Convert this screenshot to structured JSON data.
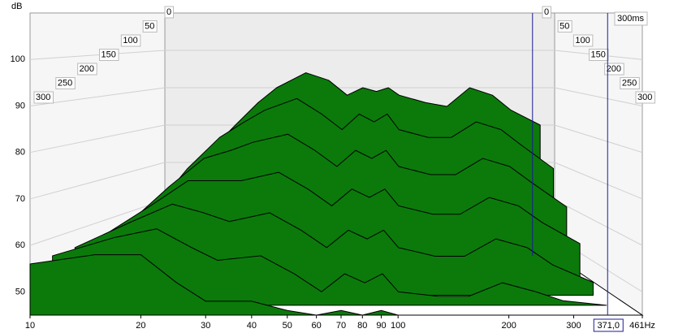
{
  "chart_data": {
    "type": "waterfall",
    "y_label": "dB",
    "time_label": "300ms",
    "color": "#0b7a0b",
    "x": [
      10,
      15,
      20,
      25,
      30,
      40,
      50,
      60,
      70,
      80,
      90,
      100,
      130,
      160,
      200,
      250,
      300,
      400
    ],
    "series": [
      {
        "time": 0,
        "values": [
          57,
          72,
          80,
          86,
          90,
          94,
          92,
          88,
          90,
          89,
          90,
          88,
          86,
          85,
          90,
          88,
          84,
          80
        ]
      },
      {
        "time": 50,
        "values": [
          56,
          70,
          78,
          82,
          85,
          88,
          84,
          80,
          84,
          82,
          84,
          80,
          78,
          78,
          82,
          80,
          76,
          70
        ]
      },
      {
        "time": 100,
        "values": [
          56,
          67,
          74,
          76,
          78,
          80,
          76,
          72,
          76,
          74,
          76,
          72,
          70,
          70,
          74,
          72,
          68,
          62
        ]
      },
      {
        "time": 150,
        "values": [
          56,
          64,
          70,
          70,
          70,
          72,
          68,
          64,
          68,
          66,
          68,
          64,
          62,
          62,
          66,
          64,
          60,
          55
        ]
      },
      {
        "time": 200,
        "values": [
          56,
          62,
          66,
          64,
          62,
          64,
          60,
          56,
          60,
          58,
          60,
          56,
          54,
          54,
          58,
          56,
          52,
          48
        ]
      },
      {
        "time": 250,
        "values": [
          56,
          60,
          62,
          58,
          55,
          56,
          52,
          48,
          52,
          50,
          52,
          48,
          47,
          47,
          50,
          48,
          46,
          45
        ]
      },
      {
        "time": 300,
        "values": [
          56,
          58,
          58,
          52,
          48,
          48,
          46,
          45,
          46,
          45,
          46,
          45,
          45,
          45,
          45,
          45,
          45,
          45
        ]
      }
    ],
    "xlim": [
      10,
      461
    ],
    "xticks": [
      10,
      20,
      30,
      40,
      50,
      60,
      70,
      80,
      90,
      100,
      200,
      300,
      {
        "value": 461,
        "label": "461Hz"
      }
    ],
    "ylim": [
      45,
      110
    ],
    "yticks": [
      50,
      60,
      70,
      80,
      90,
      100
    ],
    "zlim": [
      0,
      300
    ],
    "zticks": [
      0,
      50,
      100,
      150,
      200,
      250,
      300
    ],
    "cursor": {
      "value": 371,
      "label": "371,0"
    },
    "grid": true
  }
}
